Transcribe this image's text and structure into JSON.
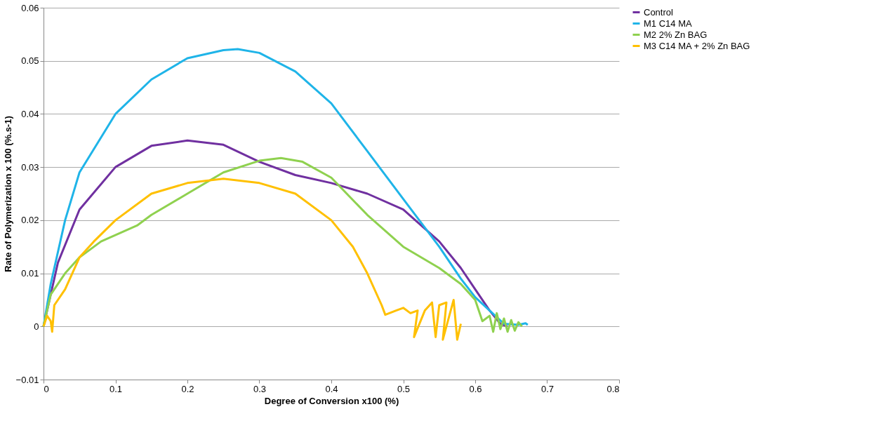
{
  "chart_data": {
    "type": "line",
    "xlabel": "Degree of Conversion x100 (%)",
    "ylabel": "Rate of Polymerization x 100 (%.s-1)",
    "xlim": [
      0,
      0.8
    ],
    "xticks": [
      0,
      0.1,
      0.2,
      0.3,
      0.4,
      0.5,
      0.6,
      0.7,
      0.8
    ],
    "ylim": [
      -0.01,
      0.06
    ],
    "yticks": [
      -0.01,
      0,
      0.01,
      0.02,
      0.03,
      0.04,
      0.05,
      0.06
    ],
    "grid": "y",
    "legend": "right",
    "marker": "none",
    "line_style": "solid",
    "series": [
      {
        "name": "Control",
        "color": "#7030a0",
        "x": [
          0,
          0.02,
          0.05,
          0.1,
          0.15,
          0.2,
          0.25,
          0.3,
          0.35,
          0.4,
          0.45,
          0.5,
          0.55,
          0.58,
          0.6,
          0.62,
          0.635,
          0.645
        ],
        "values": [
          0,
          0.012,
          0.022,
          0.03,
          0.034,
          0.035,
          0.0342,
          0.031,
          0.0285,
          0.027,
          0.025,
          0.022,
          0.016,
          0.011,
          0.007,
          0.003,
          0.0005,
          0
        ]
      },
      {
        "name": "M1 C14 MA",
        "color": "#1fb4e8",
        "x": [
          0,
          0.01,
          0.03,
          0.05,
          0.1,
          0.15,
          0.2,
          0.25,
          0.27,
          0.3,
          0.35,
          0.4,
          0.45,
          0.5,
          0.55,
          0.58,
          0.6,
          0.62,
          0.64,
          0.66,
          0.67,
          0.673
        ],
        "values": [
          0,
          0.008,
          0.02,
          0.029,
          0.04,
          0.0465,
          0.0505,
          0.052,
          0.0522,
          0.0515,
          0.048,
          0.042,
          0.033,
          0.024,
          0.015,
          0.009,
          0.0055,
          0.003,
          0.0005,
          0.0003,
          0.0006,
          0.0003
        ]
      },
      {
        "name": "M2 2% Zn BAG",
        "color": "#8fd14f",
        "x": [
          0,
          0.01,
          0.03,
          0.05,
          0.08,
          0.13,
          0.15,
          0.2,
          0.25,
          0.3,
          0.33,
          0.36,
          0.4,
          0.45,
          0.5,
          0.55,
          0.58,
          0.6,
          0.61,
          0.62,
          0.625,
          0.63,
          0.635,
          0.64,
          0.645,
          0.65,
          0.655,
          0.66,
          0.665
        ],
        "values": [
          0,
          0.006,
          0.01,
          0.013,
          0.016,
          0.019,
          0.021,
          0.025,
          0.029,
          0.0312,
          0.0317,
          0.031,
          0.028,
          0.021,
          0.015,
          0.011,
          0.008,
          0.005,
          0.001,
          0.002,
          -0.001,
          0.0025,
          -0.0005,
          0.0015,
          -0.001,
          0.0012,
          -0.0008,
          0.0008,
          0
        ]
      },
      {
        "name": "M3 C14 MA + 2% Zn BAG",
        "color": "#ffc000",
        "x": [
          0,
          0.005,
          0.01,
          0.012,
          0.015,
          0.03,
          0.05,
          0.07,
          0.1,
          0.15,
          0.2,
          0.25,
          0.3,
          0.35,
          0.4,
          0.43,
          0.45,
          0.47,
          0.475,
          0.49,
          0.5,
          0.51,
          0.52,
          0.515,
          0.53,
          0.54,
          0.545,
          0.55,
          0.56,
          0.555,
          0.57,
          0.575,
          0.58
        ],
        "values": [
          0,
          0.002,
          0.001,
          -0.001,
          0.004,
          0.007,
          0.013,
          0.016,
          0.02,
          0.025,
          0.027,
          0.0278,
          0.027,
          0.025,
          0.02,
          0.015,
          0.01,
          0.004,
          0.0022,
          0.003,
          0.0035,
          0.0025,
          0.003,
          -0.002,
          0.003,
          0.0045,
          -0.002,
          0.004,
          0.0045,
          -0.0025,
          0.005,
          -0.0025,
          0.0005
        ]
      }
    ]
  }
}
